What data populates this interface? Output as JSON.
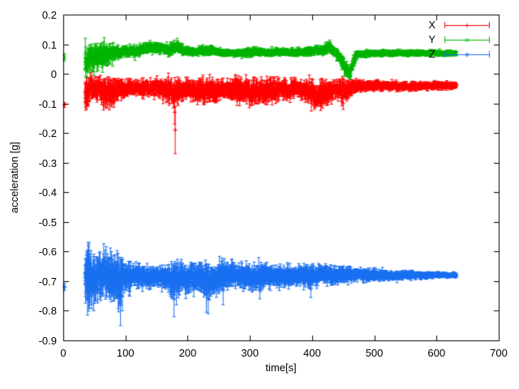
{
  "chart_data": {
    "type": "scatter",
    "title": "",
    "xlabel": "time[s]",
    "ylabel": "acceleration [g]",
    "xlim": [
      0,
      700
    ],
    "ylim": [
      -0.9,
      0.2
    ],
    "grid": false,
    "legend_position": "top-right-inside",
    "background_color": "#ffffff",
    "axis_color": "#000000",
    "xticks": [
      [
        0,
        "0"
      ],
      [
        100,
        "100"
      ],
      [
        200,
        "200"
      ],
      [
        300,
        "300"
      ],
      [
        400,
        "400"
      ],
      [
        500,
        "500"
      ],
      [
        600,
        "600"
      ],
      [
        700,
        "700"
      ]
    ],
    "yticks": [
      [
        0.2,
        "0.2"
      ],
      [
        0.1,
        "0.1"
      ],
      [
        0,
        "0"
      ],
      [
        -0.1,
        "-0.1"
      ],
      [
        -0.2,
        "-0.2"
      ],
      [
        -0.3,
        "-0.3"
      ],
      [
        -0.4,
        "-0.4"
      ],
      [
        -0.5,
        "-0.5"
      ],
      [
        -0.6,
        "-0.6"
      ],
      [
        -0.7,
        "-0.7"
      ],
      [
        -0.8,
        "-0.8"
      ],
      [
        -0.9,
        "-0.9"
      ]
    ],
    "point_style": "errorbars",
    "series": [
      {
        "name": "X",
        "color": "#ff0000",
        "marker": "plus",
        "seed": 11,
        "t_range": [
          35,
          632
        ],
        "dt": 0.4,
        "initial_points": [
          [
            2,
            -0.105,
            0.008
          ]
        ],
        "outliers": [
          [
            179,
            -0.13,
            0.04
          ],
          [
            180,
            -0.19,
            0.08
          ],
          [
            450,
            -0.1,
            0.02
          ]
        ],
        "envelope": [
          [
            35,
            -0.07,
            0.055
          ],
          [
            42,
            -0.05,
            0.05
          ],
          [
            50,
            -0.045,
            0.035
          ],
          [
            58,
            -0.05,
            0.04
          ],
          [
            66,
            -0.055,
            0.045
          ],
          [
            74,
            -0.06,
            0.05
          ],
          [
            82,
            -0.055,
            0.045
          ],
          [
            90,
            -0.05,
            0.035
          ],
          [
            100,
            -0.05,
            0.028
          ],
          [
            115,
            -0.046,
            0.022
          ],
          [
            130,
            -0.05,
            0.025
          ],
          [
            145,
            -0.048,
            0.025
          ],
          [
            160,
            -0.05,
            0.032
          ],
          [
            172,
            -0.058,
            0.04
          ],
          [
            182,
            -0.06,
            0.042
          ],
          [
            195,
            -0.05,
            0.03
          ],
          [
            210,
            -0.055,
            0.035
          ],
          [
            222,
            -0.065,
            0.045
          ],
          [
            232,
            -0.055,
            0.04
          ],
          [
            245,
            -0.062,
            0.042
          ],
          [
            255,
            -0.05,
            0.032
          ],
          [
            268,
            -0.05,
            0.03
          ],
          [
            280,
            -0.06,
            0.042
          ],
          [
            292,
            -0.055,
            0.038
          ],
          [
            305,
            -0.068,
            0.045
          ],
          [
            318,
            -0.06,
            0.04
          ],
          [
            330,
            -0.055,
            0.038
          ],
          [
            342,
            -0.06,
            0.04
          ],
          [
            352,
            -0.05,
            0.03
          ],
          [
            365,
            -0.055,
            0.032
          ],
          [
            376,
            -0.05,
            0.026
          ],
          [
            388,
            -0.055,
            0.03
          ],
          [
            398,
            -0.068,
            0.044
          ],
          [
            412,
            -0.078,
            0.046
          ],
          [
            424,
            -0.062,
            0.04
          ],
          [
            436,
            -0.05,
            0.03
          ],
          [
            448,
            -0.058,
            0.04
          ],
          [
            460,
            -0.05,
            0.03
          ],
          [
            470,
            -0.043,
            0.02
          ],
          [
            490,
            -0.04,
            0.016
          ],
          [
            520,
            -0.04,
            0.015
          ],
          [
            560,
            -0.042,
            0.014
          ],
          [
            600,
            -0.04,
            0.013
          ],
          [
            632,
            -0.04,
            0.012
          ]
        ]
      },
      {
        "name": "Y",
        "color": "#00b400",
        "marker": "cross",
        "seed": 22,
        "t_range": [
          35,
          632
        ],
        "dt": 0.4,
        "initial_points": [
          [
            2,
            0.056,
            0.012
          ]
        ],
        "outliers": [
          [
            183,
            0.108,
            0.012
          ],
          [
            428,
            0.102,
            0.012
          ]
        ],
        "envelope": [
          [
            35,
            0.05,
            0.05
          ],
          [
            45,
            0.055,
            0.045
          ],
          [
            55,
            0.06,
            0.042
          ],
          [
            65,
            0.06,
            0.04
          ],
          [
            75,
            0.065,
            0.035
          ],
          [
            85,
            0.07,
            0.025
          ],
          [
            95,
            0.075,
            0.018
          ],
          [
            110,
            0.075,
            0.016
          ],
          [
            125,
            0.08,
            0.018
          ],
          [
            135,
            0.088,
            0.016
          ],
          [
            148,
            0.09,
            0.015
          ],
          [
            158,
            0.085,
            0.016
          ],
          [
            168,
            0.08,
            0.02
          ],
          [
            178,
            0.085,
            0.02
          ],
          [
            186,
            0.09,
            0.018
          ],
          [
            195,
            0.078,
            0.014
          ],
          [
            210,
            0.075,
            0.013
          ],
          [
            225,
            0.078,
            0.015
          ],
          [
            238,
            0.08,
            0.016
          ],
          [
            252,
            0.072,
            0.012
          ],
          [
            270,
            0.07,
            0.011
          ],
          [
            290,
            0.072,
            0.012
          ],
          [
            308,
            0.075,
            0.014
          ],
          [
            325,
            0.072,
            0.012
          ],
          [
            345,
            0.074,
            0.012
          ],
          [
            365,
            0.072,
            0.012
          ],
          [
            385,
            0.074,
            0.012
          ],
          [
            402,
            0.077,
            0.014
          ],
          [
            418,
            0.08,
            0.016
          ],
          [
            428,
            0.088,
            0.018
          ],
          [
            438,
            0.072,
            0.016
          ],
          [
            446,
            0.05,
            0.022
          ],
          [
            453,
            0.02,
            0.025
          ],
          [
            459,
            0.002,
            0.02
          ],
          [
            463,
            0.015,
            0.02
          ],
          [
            467,
            0.045,
            0.02
          ],
          [
            473,
            0.065,
            0.013
          ],
          [
            490,
            0.069,
            0.011
          ],
          [
            520,
            0.07,
            0.01
          ],
          [
            560,
            0.07,
            0.01
          ],
          [
            600,
            0.07,
            0.009
          ],
          [
            632,
            0.07,
            0.009
          ]
        ]
      },
      {
        "name": "Z",
        "color": "#1a70f0",
        "marker": "star",
        "seed": 33,
        "t_range": [
          35,
          632
        ],
        "dt": 0.4,
        "initial_points": [
          [
            2,
            -0.72,
            0.012
          ]
        ],
        "outliers": [
          [
            92,
            -0.78,
            0.07
          ],
          [
            95,
            -0.75,
            0.05
          ],
          [
            178,
            -0.76,
            0.06
          ],
          [
            182,
            -0.73,
            0.05
          ],
          [
            230,
            -0.745,
            0.06
          ],
          [
            233,
            -0.76,
            0.05
          ],
          [
            257,
            -0.73,
            0.05
          ],
          [
            316,
            -0.73,
            0.03
          ],
          [
            398,
            -0.725,
            0.03
          ]
        ],
        "envelope": [
          [
            35,
            -0.7,
            0.1
          ],
          [
            42,
            -0.695,
            0.095
          ],
          [
            50,
            -0.69,
            0.085
          ],
          [
            58,
            -0.685,
            0.075
          ],
          [
            66,
            -0.69,
            0.08
          ],
          [
            75,
            -0.685,
            0.075
          ],
          [
            84,
            -0.69,
            0.08
          ],
          [
            92,
            -0.695,
            0.085
          ],
          [
            100,
            -0.685,
            0.055
          ],
          [
            112,
            -0.685,
            0.042
          ],
          [
            126,
            -0.685,
            0.038
          ],
          [
            140,
            -0.685,
            0.034
          ],
          [
            154,
            -0.686,
            0.032
          ],
          [
            166,
            -0.69,
            0.04
          ],
          [
            176,
            -0.7,
            0.058
          ],
          [
            184,
            -0.695,
            0.055
          ],
          [
            196,
            -0.687,
            0.05
          ],
          [
            210,
            -0.686,
            0.05
          ],
          [
            222,
            -0.69,
            0.055
          ],
          [
            232,
            -0.697,
            0.058
          ],
          [
            244,
            -0.688,
            0.048
          ],
          [
            258,
            -0.684,
            0.045
          ],
          [
            272,
            -0.682,
            0.04
          ],
          [
            288,
            -0.684,
            0.04
          ],
          [
            304,
            -0.688,
            0.045
          ],
          [
            316,
            -0.684,
            0.04
          ],
          [
            332,
            -0.682,
            0.036
          ],
          [
            348,
            -0.684,
            0.036
          ],
          [
            364,
            -0.682,
            0.032
          ],
          [
            380,
            -0.68,
            0.03
          ],
          [
            394,
            -0.688,
            0.04
          ],
          [
            406,
            -0.684,
            0.034
          ],
          [
            420,
            -0.678,
            0.03
          ],
          [
            436,
            -0.68,
            0.03
          ],
          [
            452,
            -0.677,
            0.026
          ],
          [
            468,
            -0.679,
            0.022
          ],
          [
            484,
            -0.68,
            0.02
          ],
          [
            505,
            -0.68,
            0.018
          ],
          [
            530,
            -0.681,
            0.015
          ],
          [
            555,
            -0.68,
            0.013
          ],
          [
            580,
            -0.68,
            0.011
          ],
          [
            605,
            -0.68,
            0.009
          ],
          [
            632,
            -0.68,
            0.008
          ]
        ]
      }
    ]
  }
}
